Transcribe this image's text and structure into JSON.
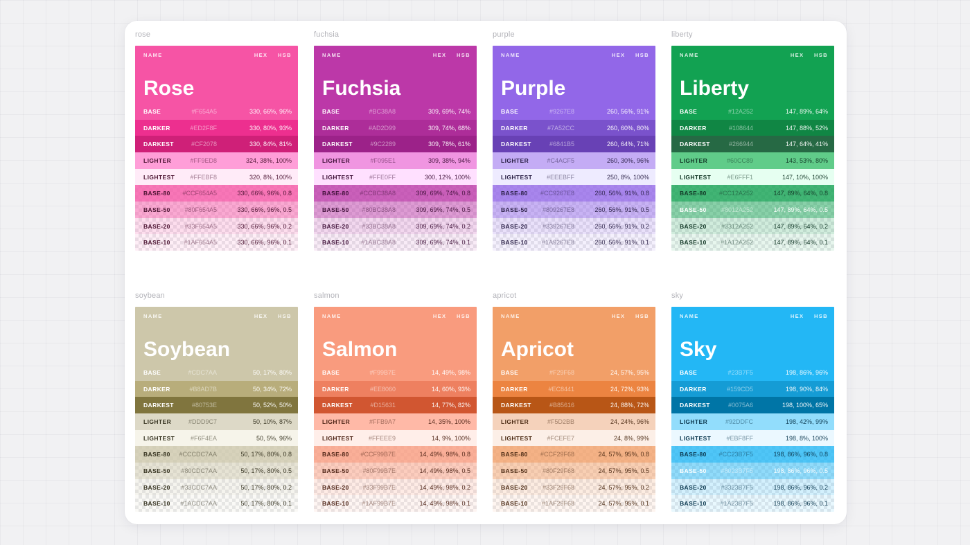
{
  "header_labels": {
    "name": "NAME",
    "hex": "HEX",
    "hsb": "HSB"
  },
  "cards": [
    {
      "frame_label": "rose",
      "title": "Rose",
      "accent": "#F654A5",
      "dark_text": "#4a1230",
      "rows": [
        {
          "label": "BASE",
          "hex": "#F654A5",
          "hsb": "330, 66%, 96%",
          "bg": "#F654A5",
          "text": "light",
          "checker": false
        },
        {
          "label": "DARKER",
          "hex": "#ED2F8F",
          "hsb": "330, 80%, 93%",
          "bg": "#ED2F8F",
          "text": "light",
          "checker": false
        },
        {
          "label": "DARKEST",
          "hex": "#CF2078",
          "hsb": "330, 84%, 81%",
          "bg": "#CF2078",
          "text": "light",
          "checker": false
        },
        {
          "label": "LIGHTER",
          "hex": "#FF9ED8",
          "hsb": "324, 38%, 100%",
          "bg": "#FF9ED8",
          "text": "dark",
          "checker": false
        },
        {
          "label": "LIGHTEST",
          "hex": "#FFEBF8",
          "hsb": "320, 8%, 100%",
          "bg": "#FFEBF8",
          "text": "dark",
          "checker": false
        },
        {
          "label": "BASE-80",
          "hex": "#CCF654A5",
          "hsb": "330, 66%, 96%, 0.8",
          "bg": "rgba(246,84,165,0.8)",
          "text": "dark",
          "checker": true
        },
        {
          "label": "BASE-50",
          "hex": "#80F654A5",
          "hsb": "330, 66%, 96%, 0.5",
          "bg": "rgba(246,84,165,0.5)",
          "text": "dark",
          "checker": true
        },
        {
          "label": "BASE-20",
          "hex": "#33F654A5",
          "hsb": "330, 66%, 96%, 0.2",
          "bg": "rgba(246,84,165,0.2)",
          "text": "dark",
          "checker": true
        },
        {
          "label": "BASE-10",
          "hex": "#1AF654A5",
          "hsb": "330, 66%, 96%, 0.1",
          "bg": "rgba(246,84,165,0.1)",
          "text": "dark",
          "checker": true
        }
      ]
    },
    {
      "frame_label": "fuchsia",
      "title": "Fuchsia",
      "accent": "#BC38A8",
      "dark_text": "#3f1038",
      "rows": [
        {
          "label": "BASE",
          "hex": "#BC38A8",
          "hsb": "309, 69%, 74%",
          "bg": "#BC38A8",
          "text": "light",
          "checker": false
        },
        {
          "label": "DARKER",
          "hex": "#AD2D99",
          "hsb": "309, 74%, 68%",
          "bg": "#AD2D99",
          "text": "light",
          "checker": false
        },
        {
          "label": "DARKEST",
          "hex": "#9C2289",
          "hsb": "309, 78%, 61%",
          "bg": "#9C2289",
          "text": "light",
          "checker": false
        },
        {
          "label": "LIGHTER",
          "hex": "#F095E1",
          "hsb": "309, 38%, 94%",
          "bg": "#F095E1",
          "text": "dark",
          "checker": false
        },
        {
          "label": "LIGHTEST",
          "hex": "#FFE0FF",
          "hsb": "300, 12%, 100%",
          "bg": "#FFE0FF",
          "text": "dark",
          "checker": false
        },
        {
          "label": "BASE-80",
          "hex": "#CCBC38A8",
          "hsb": "309, 69%, 74%, 0.8",
          "bg": "rgba(188,56,168,0.8)",
          "text": "dark",
          "checker": true
        },
        {
          "label": "BASE-50",
          "hex": "#80BC38A8",
          "hsb": "309, 69%, 74%, 0.5",
          "bg": "rgba(188,56,168,0.5)",
          "text": "dark",
          "checker": true
        },
        {
          "label": "BASE-20",
          "hex": "#33BC38A8",
          "hsb": "309, 69%, 74%, 0.2",
          "bg": "rgba(188,56,168,0.2)",
          "text": "dark",
          "checker": true
        },
        {
          "label": "BASE-10",
          "hex": "#1ABC38A8",
          "hsb": "309, 69%, 74%, 0.1",
          "bg": "rgba(188,56,168,0.1)",
          "text": "dark",
          "checker": true
        }
      ]
    },
    {
      "frame_label": "purple",
      "title": "Purple",
      "accent": "#9267E8",
      "dark_text": "#2b2147",
      "rows": [
        {
          "label": "BASE",
          "hex": "#9267E8",
          "hsb": "260, 56%, 91%",
          "bg": "#9267E8",
          "text": "light",
          "checker": false
        },
        {
          "label": "DARKER",
          "hex": "#7A52CC",
          "hsb": "260, 60%, 80%",
          "bg": "#7A52CC",
          "text": "light",
          "checker": false
        },
        {
          "label": "DARKEST",
          "hex": "#6841B5",
          "hsb": "260, 64%, 71%",
          "bg": "#6841B5",
          "text": "light",
          "checker": false
        },
        {
          "label": "LIGHTER",
          "hex": "#C4ACF5",
          "hsb": "260, 30%, 96%",
          "bg": "#C4ACF5",
          "text": "dark",
          "checker": false
        },
        {
          "label": "LIGHTEST",
          "hex": "#EEEBFF",
          "hsb": "250, 8%, 100%",
          "bg": "#EEEBFF",
          "text": "dark",
          "checker": false
        },
        {
          "label": "BASE-80",
          "hex": "#CC9267E8",
          "hsb": "260, 56%, 91%, 0.8",
          "bg": "rgba(146,103,232,0.8)",
          "text": "dark",
          "checker": true
        },
        {
          "label": "BASE-50",
          "hex": "#809267E8",
          "hsb": "260, 56%, 91%, 0.5",
          "bg": "rgba(146,103,232,0.5)",
          "text": "dark",
          "checker": true
        },
        {
          "label": "BASE-20",
          "hex": "#339267E8",
          "hsb": "260, 56%, 91%, 0.2",
          "bg": "rgba(146,103,232,0.2)",
          "text": "dark",
          "checker": true
        },
        {
          "label": "BASE-10",
          "hex": "#1A9267E8",
          "hsb": "260, 56%, 91%, 0.1",
          "bg": "rgba(146,103,232,0.1)",
          "text": "dark",
          "checker": true
        }
      ]
    },
    {
      "frame_label": "liberty",
      "title": "Liberty",
      "accent": "#12A252",
      "dark_text": "#123726",
      "rows": [
        {
          "label": "BASE",
          "hex": "#12A252",
          "hsb": "147, 89%, 64%",
          "bg": "#12A252",
          "text": "light",
          "checker": false
        },
        {
          "label": "DARKER",
          "hex": "#108644",
          "hsb": "147, 88%, 52%",
          "bg": "#108644",
          "text": "light",
          "checker": false
        },
        {
          "label": "DARKEST",
          "hex": "#266944",
          "hsb": "147, 64%, 41%",
          "bg": "#266944",
          "text": "light",
          "checker": false
        },
        {
          "label": "LIGHTER",
          "hex": "#60CC89",
          "hsb": "143, 53%, 80%",
          "bg": "#60CC89",
          "text": "dark",
          "checker": false
        },
        {
          "label": "LIGHTEST",
          "hex": "#E6FFF1",
          "hsb": "147, 10%, 100%",
          "bg": "#E6FFF1",
          "text": "dark",
          "checker": false
        },
        {
          "label": "BASE-80",
          "hex": "#CC12A252",
          "hsb": "147, 89%, 64%, 0.8",
          "bg": "rgba(18,162,82,0.8)",
          "text": "dark",
          "checker": true
        },
        {
          "label": "BASE-50",
          "hex": "#8012A252",
          "hsb": "147, 89%, 64%, 0.5",
          "bg": "rgba(18,162,82,0.5)",
          "text": "light",
          "checker": true
        },
        {
          "label": "BASE-20",
          "hex": "#3312A252",
          "hsb": "147, 89%, 64%, 0.2",
          "bg": "rgba(18,162,82,0.2)",
          "text": "dark",
          "checker": true
        },
        {
          "label": "BASE-10",
          "hex": "#1A12A252",
          "hsb": "147, 89%, 64%, 0.1",
          "bg": "rgba(18,162,82,0.1)",
          "text": "dark",
          "checker": true
        }
      ]
    },
    {
      "frame_label": "soybean",
      "title": "Soybean",
      "accent": "#CDC7AA",
      "dark_text": "#35321f",
      "rows": [
        {
          "label": "BASE",
          "hex": "#CDC7AA",
          "hsb": "50, 17%, 80%",
          "bg": "#CDC7AA",
          "text": "light",
          "checker": false
        },
        {
          "label": "DARKER",
          "hex": "#B8AD7B",
          "hsb": "50, 34%, 72%",
          "bg": "#B8AD7B",
          "text": "light",
          "checker": false
        },
        {
          "label": "DARKEST",
          "hex": "#80753E",
          "hsb": "50, 52%, 50%",
          "bg": "#80753E",
          "text": "light",
          "checker": false
        },
        {
          "label": "LIGHTER",
          "hex": "#DDD9C7",
          "hsb": "50, 10%, 87%",
          "bg": "#DDD9C7",
          "text": "dark",
          "checker": false
        },
        {
          "label": "LIGHTEST",
          "hex": "#F6F4EA",
          "hsb": "50, 5%, 96%",
          "bg": "#F6F4EA",
          "text": "dark",
          "checker": false
        },
        {
          "label": "BASE-80",
          "hex": "#CCCDC7AA",
          "hsb": "50, 17%, 80%, 0.8",
          "bg": "rgba(205,199,170,0.8)",
          "text": "dark",
          "checker": true
        },
        {
          "label": "BASE-50",
          "hex": "#80CDC7AA",
          "hsb": "50, 17%, 80%, 0.5",
          "bg": "rgba(205,199,170,0.5)",
          "text": "dark",
          "checker": true
        },
        {
          "label": "BASE-20",
          "hex": "#33CDC7AA",
          "hsb": "50, 17%, 80%, 0.2",
          "bg": "rgba(205,199,170,0.2)",
          "text": "dark",
          "checker": true
        },
        {
          "label": "BASE-10",
          "hex": "#1ACDC7AA",
          "hsb": "50, 17%, 80%, 0.1",
          "bg": "rgba(205,199,170,0.1)",
          "text": "dark",
          "checker": true
        }
      ]
    },
    {
      "frame_label": "salmon",
      "title": "Salmon",
      "accent": "#F99B7E",
      "dark_text": "#4f2517",
      "rows": [
        {
          "label": "BASE",
          "hex": "#F99B7E",
          "hsb": "14, 49%, 98%",
          "bg": "#F99B7E",
          "text": "light",
          "checker": false
        },
        {
          "label": "DARKER",
          "hex": "#EE8060",
          "hsb": "14, 60%, 93%",
          "bg": "#EE8060",
          "text": "light",
          "checker": false
        },
        {
          "label": "DARKEST",
          "hex": "#D15631",
          "hsb": "14, 77%, 82%",
          "bg": "#D15631",
          "text": "light",
          "checker": false
        },
        {
          "label": "LIGHTER",
          "hex": "#FFB9A7",
          "hsb": "14, 35%, 100%",
          "bg": "#FFB9A7",
          "text": "dark",
          "checker": false
        },
        {
          "label": "LIGHTEST",
          "hex": "#FFEEE9",
          "hsb": "14, 9%, 100%",
          "bg": "#FFEEE9",
          "text": "dark",
          "checker": false
        },
        {
          "label": "BASE-80",
          "hex": "#CCF99B7E",
          "hsb": "14, 49%, 98%, 0.8",
          "bg": "rgba(249,155,126,0.8)",
          "text": "dark",
          "checker": true
        },
        {
          "label": "BASE-50",
          "hex": "#80F99B7E",
          "hsb": "14, 49%, 98%, 0.5",
          "bg": "rgba(249,155,126,0.5)",
          "text": "dark",
          "checker": true
        },
        {
          "label": "BASE-20",
          "hex": "#33F99B7E",
          "hsb": "14, 49%, 98%, 0.2",
          "bg": "rgba(249,155,126,0.2)",
          "text": "dark",
          "checker": true
        },
        {
          "label": "BASE-10",
          "hex": "#1AF99B7E",
          "hsb": "14, 49%, 98%, 0.1",
          "bg": "rgba(249,155,126,0.1)",
          "text": "dark",
          "checker": true
        }
      ]
    },
    {
      "frame_label": "apricot",
      "title": "Apricot",
      "accent": "#F29F68",
      "dark_text": "#4d2c15",
      "rows": [
        {
          "label": "BASE",
          "hex": "#F29F68",
          "hsb": "24, 57%, 95%",
          "bg": "#F29F68",
          "text": "light",
          "checker": false
        },
        {
          "label": "DARKER",
          "hex": "#EC8441",
          "hsb": "24, 72%, 93%",
          "bg": "#EC8441",
          "text": "light",
          "checker": false
        },
        {
          "label": "DARKEST",
          "hex": "#B85616",
          "hsb": "24, 88%, 72%",
          "bg": "#B85616",
          "text": "light",
          "checker": false
        },
        {
          "label": "LIGHTER",
          "hex": "#F5D2BB",
          "hsb": "24, 24%, 96%",
          "bg": "#F5D2BB",
          "text": "dark",
          "checker": false
        },
        {
          "label": "LIGHTEST",
          "hex": "#FCEFE7",
          "hsb": "24, 8%, 99%",
          "bg": "#FCEFE7",
          "text": "dark",
          "checker": false
        },
        {
          "label": "BASE-80",
          "hex": "#CCF29F68",
          "hsb": "24, 57%, 95%, 0.8",
          "bg": "rgba(242,159,104,0.8)",
          "text": "dark",
          "checker": true
        },
        {
          "label": "BASE-50",
          "hex": "#80F29F68",
          "hsb": "24, 57%, 95%, 0.5",
          "bg": "rgba(242,159,104,0.5)",
          "text": "dark",
          "checker": true
        },
        {
          "label": "BASE-20",
          "hex": "#33F29F68",
          "hsb": "24, 57%, 95%, 0.2",
          "bg": "rgba(242,159,104,0.2)",
          "text": "dark",
          "checker": true
        },
        {
          "label": "BASE-10",
          "hex": "#1AF29F68",
          "hsb": "24, 57%, 95%, 0.1",
          "bg": "rgba(242,159,104,0.1)",
          "text": "dark",
          "checker": true
        }
      ]
    },
    {
      "frame_label": "sky",
      "title": "Sky",
      "accent": "#23B7F5",
      "dark_text": "#0c3950",
      "rows": [
        {
          "label": "BASE",
          "hex": "#23B7F5",
          "hsb": "198, 86%, 96%",
          "bg": "#23B7F5",
          "text": "light",
          "checker": false
        },
        {
          "label": "DARKER",
          "hex": "#159CD5",
          "hsb": "198, 90%, 84%",
          "bg": "#159CD5",
          "text": "light",
          "checker": false
        },
        {
          "label": "DARKEST",
          "hex": "#0075A6",
          "hsb": "198, 100%, 65%",
          "bg": "#0075A6",
          "text": "light",
          "checker": false
        },
        {
          "label": "LIGHTER",
          "hex": "#92DDFC",
          "hsb": "198, 42%, 99%",
          "bg": "#92DDFC",
          "text": "dark",
          "checker": false
        },
        {
          "label": "LIGHTEST",
          "hex": "#EBF8FF",
          "hsb": "198, 8%, 100%",
          "bg": "#EBF8FF",
          "text": "dark",
          "checker": false
        },
        {
          "label": "BASE-80",
          "hex": "#CC23B7F5",
          "hsb": "198, 86%, 96%, 0.8",
          "bg": "rgba(35,183,245,0.8)",
          "text": "dark",
          "checker": true
        },
        {
          "label": "BASE-50",
          "hex": "#8023B7F5",
          "hsb": "198, 86%, 96%, 0.5",
          "bg": "rgba(35,183,245,0.5)",
          "text": "light",
          "checker": true
        },
        {
          "label": "BASE-20",
          "hex": "#3323B7F5",
          "hsb": "198, 86%, 96%, 0.2",
          "bg": "rgba(35,183,245,0.2)",
          "text": "dark",
          "checker": true
        },
        {
          "label": "BASE-10",
          "hex": "#1A23B7F5",
          "hsb": "198, 86%, 96%, 0.1",
          "bg": "rgba(35,183,245,0.1)",
          "text": "dark",
          "checker": true
        }
      ]
    }
  ]
}
